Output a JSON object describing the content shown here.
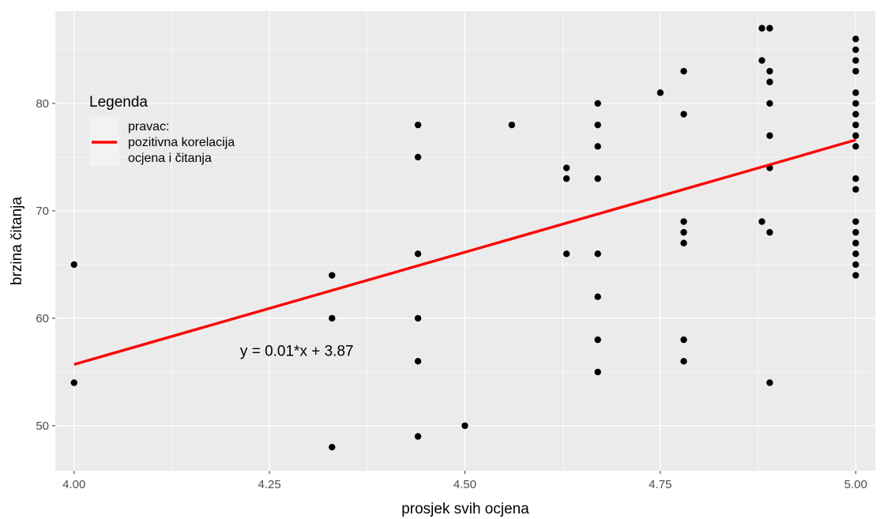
{
  "chart_data": {
    "type": "scatter",
    "title": "",
    "xlabel": "prosjek svih ocjena",
    "ylabel": "brzina čitanja",
    "xlim": [
      3.976,
      5.025
    ],
    "ylim": [
      45.8,
      88.6
    ],
    "x_ticks": [
      4.0,
      4.25,
      4.5,
      4.75,
      5.0
    ],
    "x_tick_labels": [
      "4.00",
      "4.25",
      "4.50",
      "4.75",
      "5.00"
    ],
    "y_ticks": [
      50,
      60,
      70,
      80
    ],
    "y_tick_labels": [
      "50",
      "60",
      "70",
      "80"
    ],
    "grid": true,
    "background": "#ebebeb",
    "point_color": "#000000",
    "points": [
      [
        4.0,
        65
      ],
      [
        4.0,
        54
      ],
      [
        4.33,
        64
      ],
      [
        4.33,
        60
      ],
      [
        4.33,
        48
      ],
      [
        4.44,
        78
      ],
      [
        4.44,
        75
      ],
      [
        4.44,
        66
      ],
      [
        4.44,
        60
      ],
      [
        4.44,
        56
      ],
      [
        4.44,
        49
      ],
      [
        4.5,
        50
      ],
      [
        4.56,
        78
      ],
      [
        4.63,
        74
      ],
      [
        4.63,
        73
      ],
      [
        4.63,
        66
      ],
      [
        4.67,
        80
      ],
      [
        4.67,
        78
      ],
      [
        4.67,
        76
      ],
      [
        4.67,
        73
      ],
      [
        4.67,
        66
      ],
      [
        4.67,
        62
      ],
      [
        4.67,
        58
      ],
      [
        4.67,
        55
      ],
      [
        4.75,
        81
      ],
      [
        4.78,
        83
      ],
      [
        4.78,
        79
      ],
      [
        4.78,
        69
      ],
      [
        4.78,
        68
      ],
      [
        4.78,
        67
      ],
      [
        4.78,
        58
      ],
      [
        4.78,
        56
      ],
      [
        4.88,
        87
      ],
      [
        4.88,
        84
      ],
      [
        4.88,
        69
      ],
      [
        4.89,
        87
      ],
      [
        4.89,
        83
      ],
      [
        4.89,
        82
      ],
      [
        4.89,
        80
      ],
      [
        4.89,
        77
      ],
      [
        4.89,
        74
      ],
      [
        4.89,
        68
      ],
      [
        4.89,
        54
      ],
      [
        5.0,
        86
      ],
      [
        5.0,
        85
      ],
      [
        5.0,
        84
      ],
      [
        5.0,
        83
      ],
      [
        5.0,
        81
      ],
      [
        5.0,
        80
      ],
      [
        5.0,
        79
      ],
      [
        5.0,
        78
      ],
      [
        5.0,
        77
      ],
      [
        5.0,
        76
      ],
      [
        5.0,
        73
      ],
      [
        5.0,
        72
      ],
      [
        5.0,
        69
      ],
      [
        5.0,
        68
      ],
      [
        5.0,
        67
      ],
      [
        5.0,
        66
      ],
      [
        5.0,
        65
      ],
      [
        5.0,
        64
      ]
    ],
    "regression_line": {
      "x": [
        4.0,
        5.0
      ],
      "y": [
        55.7,
        76.6
      ],
      "color": "#ff0000"
    },
    "annotation": {
      "text": "y = 0.01*x + 3.87",
      "x": 4.285,
      "y": 56.5
    },
    "legend": {
      "title": "Legenda",
      "placement": "top-left",
      "entries": [
        {
          "lines": [
            "pravac:",
            "pozitivna korelacija",
            "ocjena i čitanja"
          ],
          "color": "#ff0000"
        }
      ]
    }
  }
}
